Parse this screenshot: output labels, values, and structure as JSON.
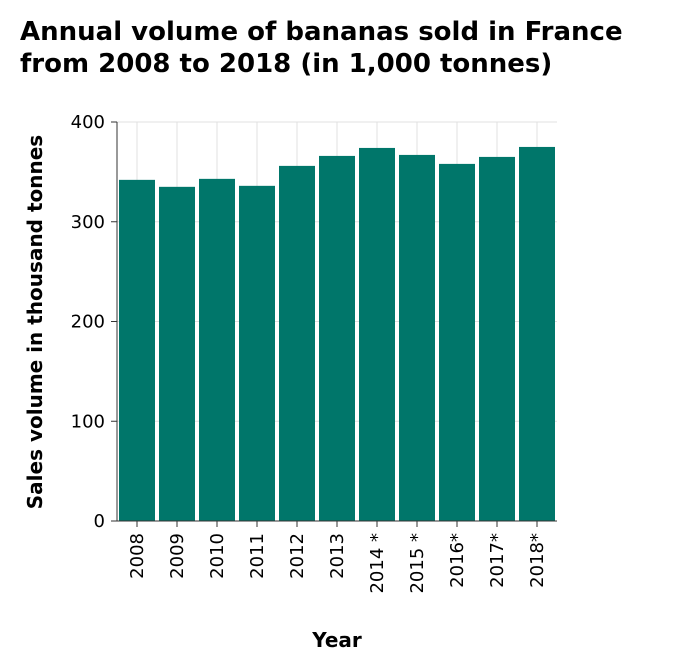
{
  "chart_data": {
    "type": "bar",
    "title_lines": [
      "Annual volume of bananas sold in France",
      "from 2008 to 2018 (in 1,000 tonnes)"
    ],
    "xlabel": "Year",
    "ylabel": "Sales volume in thousand tonnes",
    "categories": [
      "2008",
      "2009",
      "2010",
      "2011",
      "2012",
      "2013",
      "2014 *",
      "2015 *",
      "2016*",
      "2017*",
      "2018*"
    ],
    "values": [
      342,
      335,
      343,
      336,
      356,
      366,
      374,
      367,
      358,
      365,
      375
    ],
    "ylim": [
      0,
      400
    ],
    "yticks": [
      0,
      100,
      200,
      300,
      400
    ],
    "grid": true,
    "bar_color": "#00766a",
    "grid_color": "#e0e0e0"
  }
}
